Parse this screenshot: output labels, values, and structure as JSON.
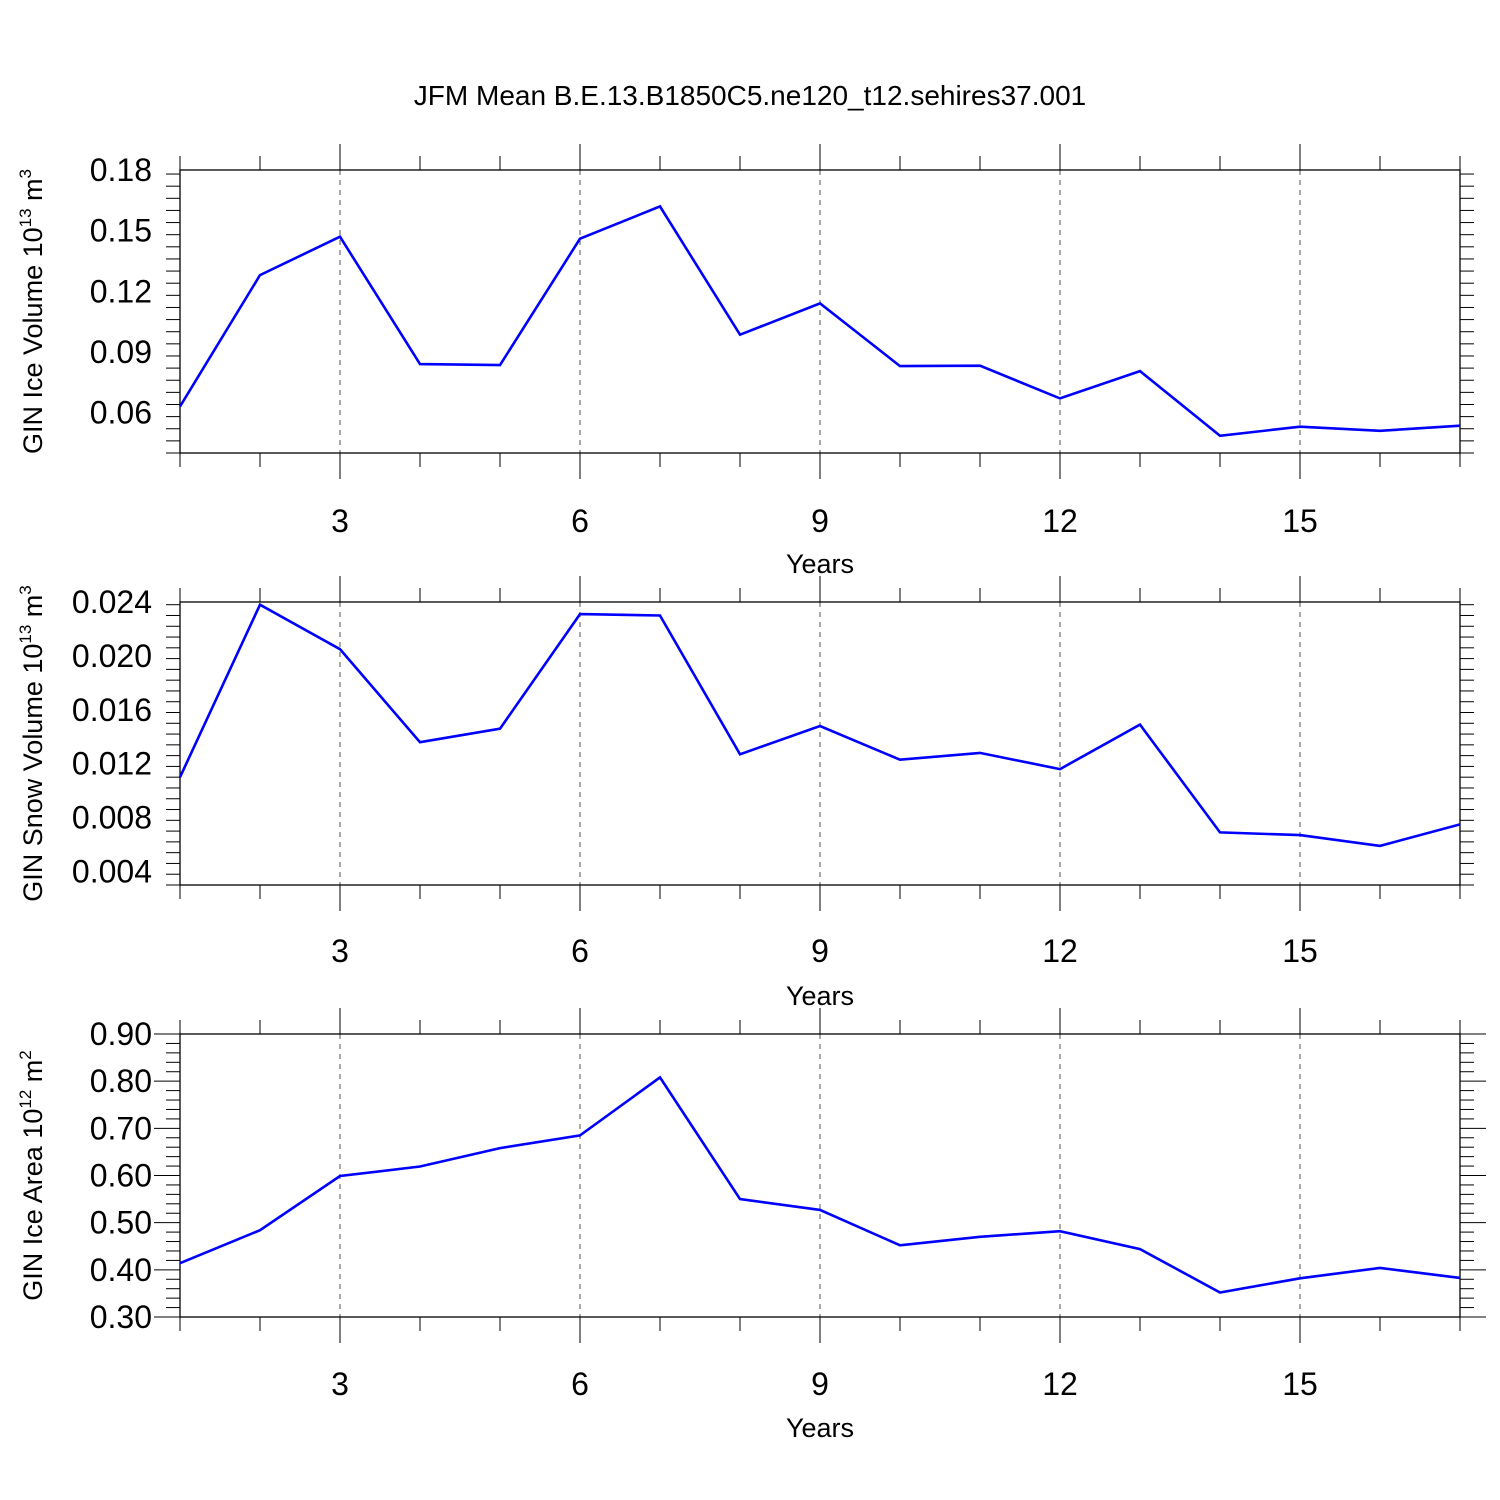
{
  "title": "JFM Mean B.E.13.B1850C5.ne120_t12.sehires37.001",
  "line_color": "#0000ff",
  "chart_data": [
    {
      "type": "line",
      "ylabel_main": "GIN Ice Volume 10",
      "ylabel_exp": "13",
      "ylabel_unit": " m",
      "ylabel_unit_exp": "3",
      "xlabel": "Years",
      "xlim": [
        1,
        17
      ],
      "ylim": [
        0.04,
        0.18
      ],
      "xticks": [
        3,
        6,
        9,
        12,
        15
      ],
      "yticks": [
        0.06,
        0.09,
        0.12,
        0.15,
        0.18
      ],
      "ytick_labels": [
        "0.06",
        "0.09",
        "0.12",
        "0.15",
        "0.18"
      ],
      "x": [
        1,
        2,
        3,
        4,
        5,
        6,
        7,
        8,
        9,
        10,
        11,
        12,
        13,
        14,
        15,
        16,
        17
      ],
      "values": [
        0.063,
        0.128,
        0.147,
        0.084,
        0.0835,
        0.146,
        0.162,
        0.0985,
        0.114,
        0.083,
        0.0832,
        0.067,
        0.0805,
        0.0485,
        0.053,
        0.051,
        0.0535
      ]
    },
    {
      "type": "line",
      "ylabel_main": "GIN Snow Volume 10",
      "ylabel_exp": "13",
      "ylabel_unit": " m",
      "ylabel_unit_exp": "3",
      "xlabel": "Years",
      "xlim": [
        1,
        17
      ],
      "ylim": [
        0.003,
        0.024
      ],
      "xticks": [
        3,
        6,
        9,
        12,
        15
      ],
      "yticks": [
        0.004,
        0.008,
        0.012,
        0.016,
        0.02,
        0.024
      ],
      "ytick_labels": [
        "0.004",
        "0.008",
        "0.012",
        "0.016",
        "0.020",
        "0.024"
      ],
      "x": [
        1,
        2,
        3,
        4,
        5,
        6,
        7,
        8,
        9,
        10,
        11,
        12,
        13,
        14,
        15,
        16,
        17
      ],
      "values": [
        0.011,
        0.0238,
        0.0205,
        0.0136,
        0.0146,
        0.0231,
        0.023,
        0.0127,
        0.0148,
        0.0123,
        0.0128,
        0.0116,
        0.0149,
        0.0069,
        0.0067,
        0.0059,
        0.0075
      ]
    },
    {
      "type": "line",
      "ylabel_main": "GIN Ice Area 10",
      "ylabel_exp": "12",
      "ylabel_unit": " m",
      "ylabel_unit_exp": "2",
      "xlabel": "Years",
      "xlim": [
        1,
        17
      ],
      "ylim": [
        0.3,
        0.9
      ],
      "xticks": [
        3,
        6,
        9,
        12,
        15
      ],
      "yticks": [
        0.3,
        0.4,
        0.5,
        0.6,
        0.7,
        0.8,
        0.9
      ],
      "ytick_labels": [
        "0.30",
        "0.40",
        "0.50",
        "0.60",
        "0.70",
        "0.80",
        "0.90"
      ],
      "x": [
        1,
        2,
        3,
        4,
        5,
        6,
        7,
        8,
        9,
        10,
        11,
        12,
        13,
        14,
        15,
        16,
        17
      ],
      "values": [
        0.414,
        0.484,
        0.599,
        0.619,
        0.658,
        0.685,
        0.808,
        0.55,
        0.527,
        0.452,
        0.47,
        0.482,
        0.444,
        0.352,
        0.382,
        0.404,
        0.383
      ]
    }
  ]
}
